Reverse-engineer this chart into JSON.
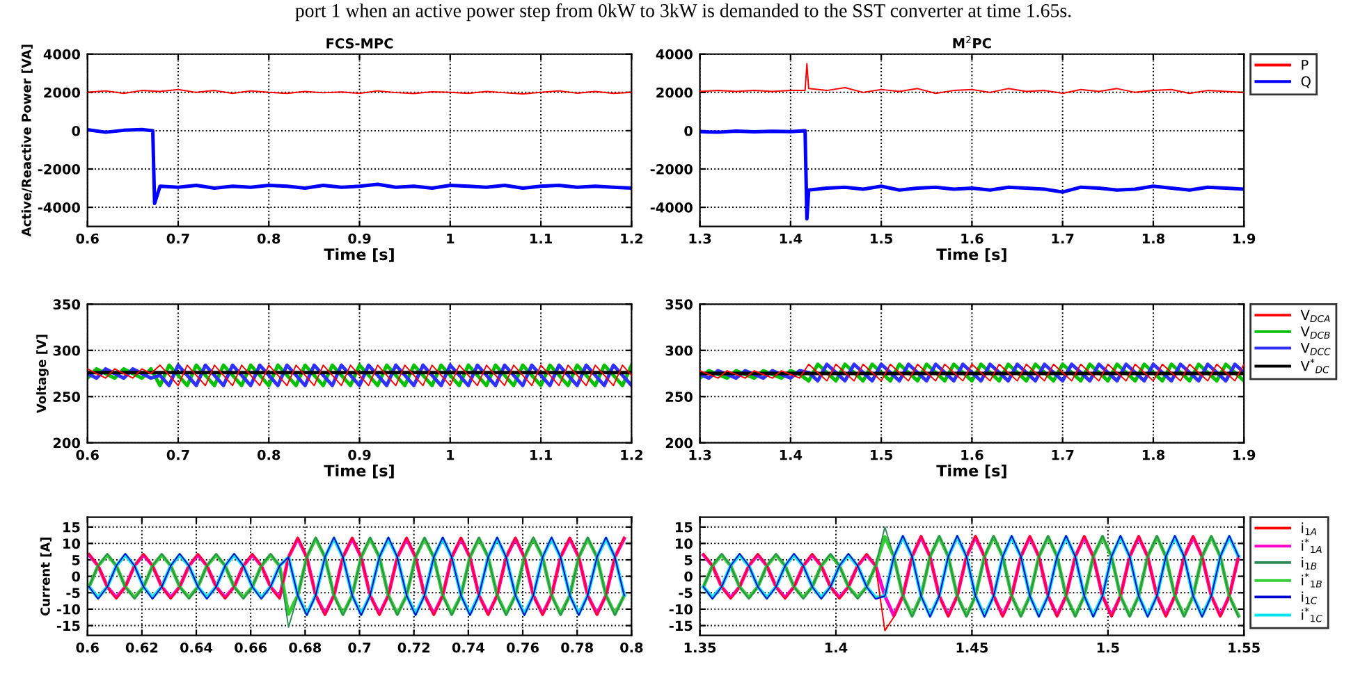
{
  "chart_data": [
    {
      "type": "line",
      "title": "FCS-MPC",
      "xlabel": "Time [s]",
      "ylabel": "Active/Reactive Power [VA]",
      "annotations": [
        "port 1 when an active power step from 0kW to 3kW is demanded to the SST converter at time 1.65s."
      ],
      "xlim": [
        0.6,
        1.2
      ],
      "xticks": [
        0.6,
        0.7,
        0.8,
        0.9,
        1,
        1.1,
        1.2
      ],
      "ylim": [
        -5000,
        4000
      ],
      "yticks": [
        -4000,
        -2000,
        0,
        2000,
        4000
      ],
      "grid": true,
      "series": [
        {
          "color": "#ff0000",
          "x": [
            0.6,
            0.62,
            0.64,
            0.66,
            0.68,
            0.7,
            0.72,
            0.74,
            0.76,
            0.78,
            0.8,
            0.82,
            0.84,
            0.86,
            0.88,
            0.9,
            0.92,
            0.94,
            0.96,
            0.98,
            1,
            1.02,
            1.04,
            1.06,
            1.08,
            1.1,
            1.12,
            1.14,
            1.16,
            1.18,
            1.2
          ],
          "values": [
            2000,
            2080,
            1950,
            2100,
            2050,
            2150,
            2000,
            2100,
            1950,
            2080,
            2000,
            1950,
            2050,
            1980,
            2020,
            1950,
            2080,
            1990,
            1940,
            2030,
            2000,
            1950,
            2050,
            1980,
            1920,
            2000,
            2080,
            1960,
            2050,
            1950,
            2000
          ]
        },
        {
          "color": "#0000ff",
          "x": [
            0.6,
            0.62,
            0.64,
            0.66,
            0.672,
            0.674,
            0.68,
            0.7,
            0.72,
            0.74,
            0.76,
            0.78,
            0.8,
            0.82,
            0.84,
            0.86,
            0.88,
            0.9,
            0.92,
            0.94,
            0.96,
            0.98,
            1,
            1.02,
            1.04,
            1.06,
            1.08,
            1.1,
            1.12,
            1.14,
            1.16,
            1.18,
            1.2
          ],
          "values": [
            50,
            -80,
            20,
            60,
            0,
            -3800,
            -2900,
            -2950,
            -2850,
            -3000,
            -2900,
            -2950,
            -2850,
            -2900,
            -3000,
            -2850,
            -2950,
            -2900,
            -2800,
            -2950,
            -2900,
            -3000,
            -2850,
            -2900,
            -2950,
            -2850,
            -3000,
            -2900,
            -2850,
            -2950,
            -2900,
            -2950,
            -3000
          ]
        }
      ]
    },
    {
      "type": "line",
      "title": "M$^{2}$PC",
      "xlabel": "Time [s]",
      "xlim": [
        1.3,
        1.9
      ],
      "xticks": [
        1.3,
        1.4,
        1.5,
        1.6,
        1.7,
        1.8,
        1.9
      ],
      "ylim": [
        -5000,
        4000
      ],
      "yticks": [
        -4000,
        -2000,
        0,
        2000,
        4000
      ],
      "grid": true,
      "legend": "right",
      "series": [
        {
          "name": "P",
          "color": "#ff0000",
          "x": [
            1.3,
            1.32,
            1.34,
            1.36,
            1.38,
            1.4,
            1.416,
            1.418,
            1.42,
            1.44,
            1.46,
            1.48,
            1.5,
            1.52,
            1.54,
            1.56,
            1.58,
            1.6,
            1.62,
            1.64,
            1.66,
            1.68,
            1.7,
            1.72,
            1.74,
            1.76,
            1.78,
            1.8,
            1.82,
            1.84,
            1.86,
            1.88,
            1.9
          ],
          "values": [
            2050,
            2100,
            2050,
            2100,
            2050,
            2100,
            2100,
            3500,
            2200,
            2100,
            2250,
            2000,
            2150,
            2050,
            2200,
            1950,
            2100,
            2150,
            2000,
            2200,
            2050,
            2100,
            1950,
            2150,
            2050,
            2200,
            2000,
            2100,
            2150,
            1950,
            2100,
            2050,
            2000
          ]
        },
        {
          "name": "Q",
          "color": "#0000ff",
          "x": [
            1.3,
            1.32,
            1.34,
            1.36,
            1.38,
            1.4,
            1.416,
            1.418,
            1.42,
            1.44,
            1.46,
            1.48,
            1.5,
            1.52,
            1.54,
            1.56,
            1.58,
            1.6,
            1.62,
            1.64,
            1.66,
            1.68,
            1.7,
            1.72,
            1.74,
            1.76,
            1.78,
            1.8,
            1.82,
            1.84,
            1.86,
            1.88,
            1.9
          ],
          "values": [
            -50,
            -80,
            -20,
            -60,
            -30,
            -50,
            0,
            -4600,
            -3100,
            -3000,
            -2950,
            -3050,
            -2900,
            -3100,
            -3000,
            -2950,
            -3050,
            -3000,
            -3100,
            -2950,
            -3000,
            -3050,
            -3200,
            -2950,
            -3000,
            -3100,
            -3050,
            -2900,
            -3000,
            -3100,
            -2950,
            -3000,
            -3050
          ]
        }
      ]
    },
    {
      "type": "line",
      "xlabel": "Time [s]",
      "ylabel": "Voltage [V]",
      "xlim": [
        0.6,
        1.2
      ],
      "xticks": [
        0.6,
        0.7,
        0.8,
        0.9,
        1,
        1.1,
        1.2
      ],
      "ylim": [
        200,
        350
      ],
      "yticks": [
        200,
        250,
        300,
        350
      ],
      "grid": true,
      "x": [
        0.6,
        0.61,
        0.62,
        0.63,
        0.64,
        0.65,
        0.66,
        0.67,
        0.68,
        0.69,
        0.7,
        0.71,
        0.72,
        0.73,
        0.74,
        0.75,
        0.76,
        0.77,
        0.78,
        0.79,
        0.8,
        0.81,
        0.82,
        0.83,
        0.84,
        0.85,
        0.86,
        0.87,
        0.88,
        0.89,
        0.9,
        0.91,
        0.92,
        0.93,
        0.94,
        0.95,
        0.96,
        0.97,
        0.98,
        0.99,
        1,
        1.01,
        1.02,
        1.03,
        1.04,
        1.05,
        1.06,
        1.07,
        1.08,
        1.09,
        1.1,
        1.11,
        1.12,
        1.13,
        1.14,
        1.15,
        1.16,
        1.17,
        1.18,
        1.19,
        1.2
      ],
      "series": [
        {
          "color": "#ff0000",
          "values": [
            280,
            275,
            270,
            280,
            275,
            270,
            280,
            275,
            284,
            273,
            262,
            284,
            273,
            262,
            284,
            273,
            262,
            284,
            273,
            262,
            284,
            273,
            262,
            284,
            273,
            262,
            284,
            273,
            262,
            284,
            273,
            262,
            284,
            273,
            262,
            284,
            273,
            262,
            284,
            273,
            262,
            284,
            273,
            262,
            284,
            273,
            262,
            284,
            273,
            262,
            284,
            273,
            262,
            284,
            273,
            262,
            284,
            273,
            262,
            284,
            273
          ]
        },
        {
          "color": "#00c000",
          "values": [
            270,
            280,
            275,
            270,
            280,
            275,
            270,
            280,
            262,
            284,
            273,
            262,
            284,
            273,
            262,
            284,
            273,
            262,
            284,
            273,
            262,
            284,
            273,
            262,
            284,
            273,
            262,
            284,
            273,
            262,
            284,
            273,
            262,
            284,
            273,
            262,
            284,
            273,
            262,
            284,
            273,
            262,
            284,
            273,
            262,
            284,
            273,
            262,
            284,
            273,
            262,
            284,
            273,
            262,
            284,
            273,
            262,
            284,
            273,
            262,
            284
          ]
        },
        {
          "color": "#3030ff",
          "values": [
            275,
            270,
            280,
            275,
            270,
            280,
            275,
            270,
            273,
            262,
            284,
            273,
            262,
            284,
            273,
            262,
            284,
            273,
            262,
            284,
            273,
            262,
            284,
            273,
            262,
            284,
            273,
            262,
            284,
            273,
            262,
            284,
            273,
            262,
            284,
            273,
            262,
            284,
            273,
            262,
            284,
            273,
            262,
            284,
            273,
            262,
            284,
            273,
            262,
            284,
            273,
            262,
            284,
            273,
            262,
            284,
            273,
            262,
            284,
            273,
            262
          ]
        },
        {
          "color": "#000000",
          "x": [
            0.6,
            1.2
          ],
          "values": [
            276,
            276
          ]
        }
      ]
    },
    {
      "type": "line",
      "xlabel": "Time [s]",
      "xlim": [
        1.3,
        1.9
      ],
      "xticks": [
        1.3,
        1.4,
        1.5,
        1.6,
        1.7,
        1.8,
        1.9
      ],
      "ylim": [
        200,
        350
      ],
      "yticks": [
        200,
        250,
        300,
        350
      ],
      "grid": true,
      "legend": "right",
      "x": [
        1.3,
        1.31,
        1.32,
        1.33,
        1.34,
        1.35,
        1.36,
        1.37,
        1.38,
        1.39,
        1.4,
        1.41,
        1.42,
        1.43,
        1.44,
        1.45,
        1.46,
        1.47,
        1.48,
        1.49,
        1.5,
        1.51,
        1.52,
        1.53,
        1.54,
        1.55,
        1.56,
        1.57,
        1.58,
        1.59,
        1.6,
        1.61,
        1.62,
        1.63,
        1.64,
        1.65,
        1.66,
        1.67,
        1.68,
        1.69,
        1.7,
        1.71,
        1.72,
        1.73,
        1.74,
        1.75,
        1.76,
        1.77,
        1.78,
        1.79,
        1.8,
        1.81,
        1.82,
        1.83,
        1.84,
        1.85,
        1.86,
        1.87,
        1.88,
        1.89,
        1.9
      ],
      "series": [
        {
          "name": "V$_{DCA}$",
          "color": "#ff0000",
          "values": [
            278,
            274,
            270,
            278,
            274,
            270,
            278,
            274,
            270,
            278,
            274,
            270,
            285,
            276,
            267,
            285,
            276,
            267,
            285,
            276,
            267,
            285,
            276,
            267,
            285,
            276,
            267,
            285,
            276,
            267,
            285,
            276,
            267,
            285,
            276,
            267,
            285,
            276,
            267,
            285,
            276,
            267,
            285,
            276,
            267,
            285,
            276,
            267,
            285,
            276,
            267,
            285,
            276,
            267,
            285,
            276,
            267,
            285,
            276,
            267,
            285
          ]
        },
        {
          "name": "V$_{DCB}$",
          "color": "#00c000",
          "values": [
            270,
            278,
            274,
            270,
            278,
            274,
            270,
            278,
            274,
            270,
            278,
            274,
            267,
            285,
            276,
            267,
            285,
            276,
            267,
            285,
            276,
            267,
            285,
            276,
            267,
            285,
            276,
            267,
            285,
            276,
            267,
            285,
            276,
            267,
            285,
            276,
            267,
            285,
            276,
            267,
            285,
            276,
            267,
            285,
            276,
            267,
            285,
            276,
            267,
            285,
            276,
            267,
            285,
            276,
            267,
            285,
            276,
            267,
            285,
            276,
            267
          ]
        },
        {
          "name": "V$_{DCC}$",
          "color": "#3030ff",
          "values": [
            274,
            270,
            278,
            274,
            270,
            278,
            274,
            270,
            278,
            274,
            270,
            278,
            276,
            267,
            285,
            276,
            267,
            285,
            276,
            267,
            285,
            276,
            267,
            285,
            276,
            267,
            285,
            276,
            267,
            285,
            276,
            267,
            285,
            276,
            267,
            285,
            276,
            267,
            285,
            276,
            267,
            285,
            276,
            267,
            285,
            276,
            267,
            285,
            276,
            267,
            285,
            276,
            267,
            285,
            276,
            267,
            285,
            276,
            267,
            285,
            276
          ]
        },
        {
          "name": "V$^{*}$$_{DC}$",
          "color": "#000000",
          "x": [
            1.3,
            1.9
          ],
          "values": [
            275,
            275
          ]
        }
      ]
    },
    {
      "type": "line",
      "ylabel": "Current [A]",
      "xlim": [
        0.6,
        0.8
      ],
      "xticks": [
        0.6,
        0.62,
        0.64,
        0.66,
        0.68,
        0.7,
        0.72,
        0.74,
        0.76,
        0.78,
        0.8
      ],
      "ylim": [
        -18,
        18
      ],
      "yticks": [
        -15,
        -10,
        -5,
        0,
        5,
        10,
        15
      ],
      "grid": true,
      "x": [
        0.6006,
        0.6039,
        0.6073,
        0.6106,
        0.6139,
        0.6173,
        0.6206,
        0.6239,
        0.6273,
        0.6306,
        0.6339,
        0.6373,
        0.6406,
        0.6439,
        0.6473,
        0.6506,
        0.6539,
        0.6573,
        0.6606,
        0.6639,
        0.6673,
        0.6706,
        0.6739,
        0.6773,
        0.6806,
        0.6839,
        0.6873,
        0.6906,
        0.6939,
        0.6973,
        0.7006,
        0.7039,
        0.7073,
        0.7106,
        0.7139,
        0.7173,
        0.7206,
        0.7239,
        0.7273,
        0.7306,
        0.7339,
        0.7373,
        0.7406,
        0.7439,
        0.7473,
        0.7506,
        0.7539,
        0.7573,
        0.7606,
        0.7639,
        0.7673,
        0.7706,
        0.7739,
        0.7773,
        0.7806,
        0.7839,
        0.7873,
        0.7906,
        0.7939,
        0.7973
      ],
      "series": [
        {
          "color": "#ff0000",
          "values": [
            6.9,
            3.2,
            -3.2,
            -6.9,
            -3.2,
            3.2,
            6.9,
            3.2,
            -3.2,
            -6.9,
            -3.2,
            3.2,
            6.9,
            3.2,
            -3.2,
            -6.9,
            -3.2,
            3.2,
            6.9,
            3.2,
            -3.2,
            -6.9,
            5.8,
            11.9,
            5.8,
            -5.8,
            -11.9,
            -5.8,
            5.8,
            11.9,
            5.8,
            -5.8,
            -11.9,
            -5.8,
            5.8,
            11.9,
            5.8,
            -5.8,
            -11.9,
            -5.8,
            5.8,
            11.9,
            5.8,
            -5.8,
            -11.9,
            -5.8,
            5.8,
            11.9,
            5.8,
            -5.8,
            -11.9,
            -5.8,
            5.8,
            11.9,
            5.8,
            -5.8,
            -11.9,
            -5.8,
            5.8,
            11.9
          ]
        },
        {
          "color": "#ff00cc",
          "values": [
            6.5,
            3.2,
            -3.2,
            -6.5,
            -3.2,
            3.2,
            6.5,
            3.2,
            -3.2,
            -6.5,
            -3.2,
            3.2,
            6.5,
            3.2,
            -3.2,
            -6.5,
            -3.2,
            3.2,
            6.5,
            3.2,
            -3.2,
            -6.5,
            5.8,
            11.5,
            5.8,
            -5.8,
            -11.5,
            -5.8,
            5.8,
            11.5,
            5.8,
            -5.8,
            -11.5,
            -5.8,
            5.8,
            11.5,
            5.8,
            -5.8,
            -11.5,
            -5.8,
            5.8,
            11.5,
            5.8,
            -5.8,
            -11.5,
            -5.8,
            5.8,
            11.5,
            5.8,
            -5.8,
            -11.5,
            -5.8,
            5.8,
            11.5,
            5.8,
            -5.8,
            -11.5,
            -5.8,
            5.8,
            11.5
          ]
        },
        {
          "color": "#2e8b57",
          "values": [
            -3.2,
            3.2,
            6.9,
            3.2,
            -3.2,
            -6.9,
            -3.2,
            3.2,
            6.9,
            3.2,
            -3.2,
            -6.9,
            -3.2,
            3.2,
            6.9,
            3.2,
            -3.2,
            -6.9,
            -3.2,
            3.2,
            6.9,
            3.2,
            -15.5,
            -5.8,
            5.8,
            11.9,
            5.8,
            -5.8,
            -11.9,
            -5.8,
            5.8,
            11.9,
            5.8,
            -5.8,
            -11.9,
            -5.8,
            5.8,
            11.9,
            5.8,
            -5.8,
            -11.9,
            -5.8,
            5.8,
            11.9,
            5.8,
            -5.8,
            -11.9,
            -5.8,
            5.8,
            11.9,
            5.8,
            -5.8,
            -11.9,
            -5.8,
            5.8,
            11.9,
            5.8,
            -5.8,
            -11.9,
            -5.8
          ]
        },
        {
          "color": "#33cc33",
          "values": [
            -3.2,
            3.2,
            6.5,
            3.2,
            -3.2,
            -6.5,
            -3.2,
            3.2,
            6.5,
            3.2,
            -3.2,
            -6.5,
            -3.2,
            3.2,
            6.5,
            3.2,
            -3.2,
            -6.5,
            -3.2,
            3.2,
            6.5,
            3.2,
            -11.5,
            -5.8,
            5.8,
            11.5,
            5.8,
            -5.8,
            -11.5,
            -5.8,
            5.8,
            11.5,
            5.8,
            -5.8,
            -11.5,
            -5.8,
            5.8,
            11.5,
            5.8,
            -5.8,
            -11.5,
            -5.8,
            5.8,
            11.5,
            5.8,
            -5.8,
            -11.5,
            -5.8,
            5.8,
            11.5,
            5.8,
            -5.8,
            -11.5,
            -5.8,
            5.8,
            11.5,
            5.8,
            -5.8,
            -11.5,
            -5.8
          ]
        },
        {
          "color": "#0000cc",
          "values": [
            -3.2,
            -6.9,
            -3.2,
            3.2,
            6.9,
            3.2,
            -3.2,
            -6.9,
            -3.2,
            3.2,
            6.9,
            3.2,
            -3.2,
            -6.9,
            -3.2,
            3.2,
            6.9,
            3.2,
            -3.2,
            -6.9,
            -3.2,
            3.2,
            5.8,
            -5.8,
            -11.9,
            -5.8,
            5.8,
            11.9,
            5.8,
            -5.8,
            -11.9,
            -5.8,
            5.8,
            11.9,
            5.8,
            -5.8,
            -11.9,
            -5.8,
            5.8,
            11.9,
            5.8,
            -5.8,
            -11.9,
            -5.8,
            5.8,
            11.9,
            5.8,
            -5.8,
            -11.9,
            -5.8,
            5.8,
            11.9,
            5.8,
            -5.8,
            -11.9,
            -5.8,
            5.8,
            11.9,
            5.8,
            -5.8
          ]
        },
        {
          "color": "#00e5ee",
          "values": [
            -3.2,
            -6.5,
            -3.2,
            3.2,
            6.5,
            3.2,
            -3.2,
            -6.5,
            -3.2,
            3.2,
            6.5,
            3.2,
            -3.2,
            -6.5,
            -3.2,
            3.2,
            6.5,
            3.2,
            -3.2,
            -6.5,
            -3.2,
            3.2,
            5.8,
            -5.8,
            -11.5,
            -5.8,
            5.8,
            11.5,
            5.8,
            -5.8,
            -11.5,
            -5.8,
            5.8,
            11.5,
            5.8,
            -5.8,
            -11.5,
            -5.8,
            5.8,
            11.5,
            5.8,
            -5.8,
            -11.5,
            -5.8,
            5.8,
            11.5,
            5.8,
            -5.8,
            -11.5,
            -5.8,
            5.8,
            11.5,
            5.8,
            -5.8,
            -11.5,
            -5.8,
            5.8,
            11.5,
            5.8,
            -5.8
          ]
        }
      ]
    },
    {
      "type": "line",
      "xlim": [
        1.35,
        1.55
      ],
      "xticks": [
        1.35,
        1.4,
        1.45,
        1.5,
        1.55
      ],
      "ylim": [
        -18,
        18
      ],
      "yticks": [
        -15,
        -10,
        -5,
        0,
        5,
        10,
        15
      ],
      "grid": true,
      "legend": "right",
      "x": [
        1.3513,
        1.3546,
        1.358,
        1.3613,
        1.3646,
        1.368,
        1.3713,
        1.3746,
        1.378,
        1.3813,
        1.3846,
        1.388,
        1.3913,
        1.3946,
        1.398,
        1.4013,
        1.4046,
        1.408,
        1.4113,
        1.4146,
        1.418,
        1.4213,
        1.4246,
        1.428,
        1.4313,
        1.4346,
        1.438,
        1.4413,
        1.4446,
        1.448,
        1.4513,
        1.4546,
        1.458,
        1.4613,
        1.4646,
        1.468,
        1.4713,
        1.4746,
        1.478,
        1.4813,
        1.4846,
        1.488,
        1.4913,
        1.4946,
        1.498,
        1.5013,
        1.5046,
        1.508,
        1.5113,
        1.5146,
        1.518,
        1.5213,
        1.5246,
        1.528,
        1.5313,
        1.5346,
        1.538,
        1.5413,
        1.5446,
        1.548
      ],
      "series": [
        {
          "name": "i$_{1A}$",
          "color": "#ff0000",
          "values": [
            6.9,
            3.2,
            -3.2,
            -6.9,
            -3.2,
            3.2,
            6.9,
            3.2,
            -3.2,
            -6.9,
            -3.2,
            3.2,
            6.9,
            3.2,
            -3.2,
            -6.9,
            -3.2,
            3.2,
            6.9,
            3.2,
            -16.5,
            -12.4,
            -6,
            6,
            12.4,
            6,
            -6,
            -12.4,
            -6,
            6,
            12.4,
            6,
            -6,
            -12.4,
            -6,
            6,
            12.4,
            6,
            -6,
            -12.4,
            -6,
            6,
            12.4,
            6,
            -6,
            -12.4,
            -6,
            6,
            12.4,
            6,
            -6,
            -12.4,
            -6,
            6,
            12.4,
            6,
            -6,
            -12.4,
            -6,
            6
          ]
        },
        {
          "name": "i$^{*}$$_{1A}$",
          "color": "#ff00cc",
          "values": [
            6.5,
            3.2,
            -3.2,
            -6.5,
            -3.2,
            3.2,
            6.5,
            3.2,
            -3.2,
            -6.5,
            -3.2,
            3.2,
            6.5,
            3.2,
            -3.2,
            -6.5,
            -3.2,
            3.2,
            6.5,
            3.2,
            -6,
            -12,
            -6,
            6,
            12,
            6,
            -6,
            -12,
            -6,
            6,
            12,
            6,
            -6,
            -12,
            -6,
            6,
            12,
            6,
            -6,
            -12,
            -6,
            6,
            12,
            6,
            -6,
            -12,
            -6,
            6,
            12,
            6,
            -6,
            -12,
            -6,
            6,
            12,
            6,
            -6,
            -12,
            -6,
            6
          ]
        },
        {
          "name": "i$_{1B}$",
          "color": "#2e8b57",
          "values": [
            -3.2,
            3.2,
            6.9,
            3.2,
            -3.2,
            -6.9,
            -3.2,
            3.2,
            6.9,
            3.2,
            -3.2,
            -6.9,
            -3.2,
            3.2,
            6.9,
            3.2,
            -3.2,
            -6.9,
            -3.2,
            3.2,
            15,
            6,
            -6,
            -12.4,
            -6,
            6,
            12.4,
            6,
            -6,
            -12.4,
            -6,
            6,
            12.4,
            6,
            -6,
            -12.4,
            -6,
            6,
            12.4,
            6,
            -6,
            -12.4,
            -6,
            6,
            12.4,
            6,
            -6,
            -12.4,
            -6,
            6,
            12.4,
            6,
            -6,
            -12.4,
            -6,
            6,
            12.4,
            6,
            -6,
            -12.4
          ]
        },
        {
          "name": "i$^{*}$$_{1B}$",
          "color": "#33cc33",
          "values": [
            -3.2,
            3.2,
            6.5,
            3.2,
            -3.2,
            -6.5,
            -3.2,
            3.2,
            6.5,
            3.2,
            -3.2,
            -6.5,
            -3.2,
            3.2,
            6.5,
            3.2,
            -3.2,
            -6.5,
            -3.2,
            3.2,
            12,
            6,
            -6,
            -12,
            -6,
            6,
            12,
            6,
            -6,
            -12,
            -6,
            6,
            12,
            6,
            -6,
            -12,
            -6,
            6,
            12,
            6,
            -6,
            -12,
            -6,
            6,
            12,
            6,
            -6,
            -12,
            -6,
            6,
            12,
            6,
            -6,
            -12,
            -6,
            6,
            12,
            6,
            -6,
            -12
          ]
        },
        {
          "name": "i$_{1C}$",
          "color": "#0000cc",
          "values": [
            -3.2,
            -6.9,
            -3.2,
            3.2,
            6.9,
            3.2,
            -3.2,
            -6.9,
            -3.2,
            3.2,
            6.9,
            3.2,
            -3.2,
            -6.9,
            -3.2,
            3.2,
            6.9,
            3.2,
            -3.2,
            -6.9,
            -6,
            6,
            12.4,
            6,
            -6,
            -12.4,
            -6,
            6,
            12.4,
            6,
            -6,
            -12.4,
            -6,
            6,
            12.4,
            6,
            -6,
            -12.4,
            -6,
            6,
            12.4,
            6,
            -6,
            -12.4,
            -6,
            6,
            12.4,
            6,
            -6,
            -12.4,
            -6,
            6,
            12.4,
            6,
            -6,
            -12.4,
            -6,
            6,
            12.4,
            6
          ]
        },
        {
          "name": "i$^{*}$$_{1C}$",
          "color": "#00e5ee",
          "values": [
            -3.2,
            -6.5,
            -3.2,
            3.2,
            6.5,
            3.2,
            -3.2,
            -6.5,
            -3.2,
            3.2,
            6.5,
            3.2,
            -3.2,
            -6.5,
            -3.2,
            3.2,
            6.5,
            3.2,
            -3.2,
            -6.5,
            -6,
            6,
            12,
            6,
            -6,
            -12,
            -6,
            6,
            12,
            6,
            -6,
            -12,
            -6,
            6,
            12,
            6,
            -6,
            -12,
            -6,
            6,
            12,
            6,
            -6,
            -12,
            -6,
            6,
            12,
            6,
            -6,
            -12,
            -6,
            6,
            12,
            6,
            -6,
            -12,
            -6,
            6,
            12,
            6
          ]
        }
      ]
    }
  ]
}
